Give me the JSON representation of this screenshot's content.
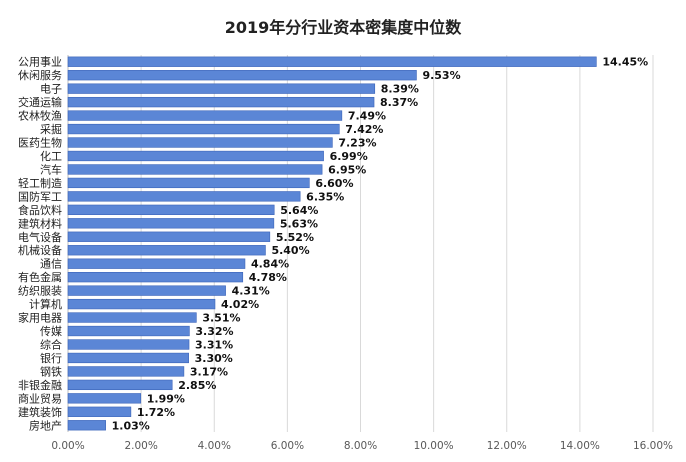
{
  "chart_data": {
    "type": "bar",
    "orientation": "horizontal",
    "title": "2019年分行业资本密集度中位数",
    "categories": [
      "公用事业",
      "休闲服务",
      "电子",
      "交通运输",
      "农林牧渔",
      "采掘",
      "医药生物",
      "化工",
      "汽车",
      "轻工制造",
      "国防军工",
      "食品饮料",
      "建筑材料",
      "电气设备",
      "机械设备",
      "通信",
      "有色金属",
      "纺织服装",
      "计算机",
      "家用电器",
      "传媒",
      "综合",
      "银行",
      "钢铁",
      "非银金融",
      "商业贸易",
      "建筑装饰",
      "房地产"
    ],
    "values": [
      14.45,
      9.53,
      8.39,
      8.37,
      7.49,
      7.42,
      7.23,
      6.99,
      6.95,
      6.6,
      6.35,
      5.64,
      5.63,
      5.52,
      5.4,
      4.84,
      4.78,
      4.31,
      4.02,
      3.51,
      3.32,
      3.31,
      3.3,
      3.17,
      2.85,
      1.99,
      1.72,
      1.03
    ],
    "data_labels": [
      "14.45%",
      "9.53%",
      "8.39%",
      "8.37%",
      "7.49%",
      "7.42%",
      "7.23%",
      "6.99%",
      "6.95%",
      "6.60%",
      "6.35%",
      "5.64%",
      "5.63%",
      "5.52%",
      "5.40%",
      "4.84%",
      "4.78%",
      "4.31%",
      "4.02%",
      "3.51%",
      "3.32%",
      "3.31%",
      "3.30%",
      "3.17%",
      "2.85%",
      "1.99%",
      "1.72%",
      "1.03%"
    ],
    "xlim": [
      0,
      16
    ],
    "x_ticks": [
      0,
      2,
      4,
      6,
      8,
      10,
      12,
      14,
      16
    ],
    "x_tick_labels": [
      "0.00%",
      "2.00%",
      "4.00%",
      "6.00%",
      "8.00%",
      "10.00%",
      "12.00%",
      "14.00%",
      "16.00%"
    ],
    "grid": true,
    "legend": "none",
    "bar_color": "#5b86d6",
    "bar_edge_color": "#3a63b8",
    "grid_color": "#d9d9d9"
  }
}
